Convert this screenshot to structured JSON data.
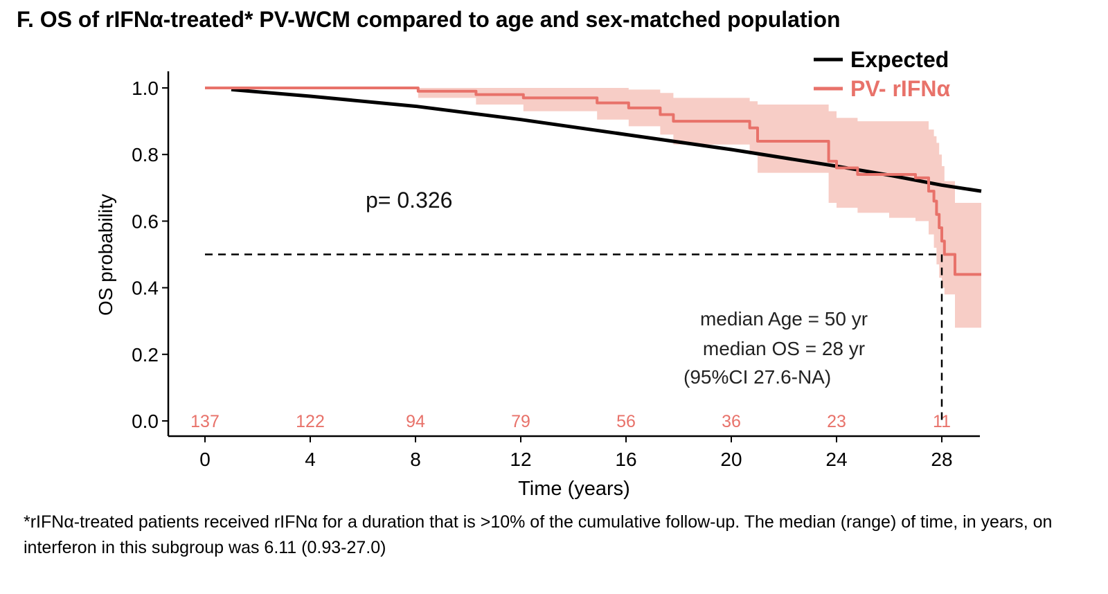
{
  "chart_data": {
    "type": "line",
    "title": "F. OS of rIFNα-treated* PV-WCM compared to age and sex-matched population",
    "xlabel": "Time (years)",
    "ylabel": "OS probability",
    "xlim": [
      -0.8,
      29.6
    ],
    "ylim": [
      -0.05,
      1.05
    ],
    "x_ticks": [
      0,
      4,
      8,
      12,
      16,
      20,
      24,
      28
    ],
    "x_tick_labels": [
      "0",
      "4",
      "8",
      "12",
      "16",
      "20",
      "24",
      "28"
    ],
    "y_ticks": [
      0,
      0.2,
      0.4,
      0.6,
      0.8,
      1.0
    ],
    "y_tick_labels": [
      "0.0",
      "0.2",
      "0.4",
      "0.6",
      "0.8",
      "1.0"
    ],
    "grid": false,
    "legend_position": "top-right",
    "series": [
      {
        "name": "Expected",
        "color": "#000000",
        "style": "smooth",
        "x": [
          1,
          4,
          8,
          12,
          16,
          20,
          22,
          24,
          26,
          28,
          29.5
        ],
        "y": [
          0.995,
          0.975,
          0.945,
          0.905,
          0.86,
          0.815,
          0.79,
          0.765,
          0.738,
          0.708,
          0.69
        ]
      },
      {
        "name": "PV- rIFNα",
        "color": "#e8726a",
        "style": "step",
        "x": [
          0,
          8.1,
          10.3,
          12.1,
          14.9,
          16.1,
          17.3,
          17.8,
          20.7,
          21.0,
          23.7,
          24.0,
          24.8,
          26.0,
          27.0,
          27.5,
          27.7,
          27.8,
          27.9,
          28.0,
          28.1,
          28.5,
          29.5
        ],
        "y": [
          1.0,
          0.99,
          0.98,
          0.97,
          0.955,
          0.94,
          0.92,
          0.9,
          0.88,
          0.84,
          0.78,
          0.76,
          0.74,
          0.74,
          0.73,
          0.69,
          0.66,
          0.62,
          0.58,
          0.54,
          0.5,
          0.44,
          0.44
        ]
      }
    ],
    "confidence_band": {
      "series": "PV- rIFNα",
      "color": "#f4b8ae",
      "opacity": 0.7,
      "x": [
        0,
        8.1,
        10.3,
        12.1,
        14.9,
        16.1,
        17.3,
        17.8,
        20.7,
        21.0,
        23.7,
        24.0,
        24.8,
        26.0,
        27.0,
        27.5,
        27.7,
        27.8,
        27.9,
        28.0,
        28.1,
        28.5,
        29.5
      ],
      "lower": [
        1.0,
        0.97,
        0.95,
        0.93,
        0.905,
        0.885,
        0.86,
        0.83,
        0.8,
        0.745,
        0.655,
        0.64,
        0.625,
        0.61,
        0.6,
        0.56,
        0.52,
        0.47,
        0.43,
        0.4,
        0.38,
        0.28,
        0.28
      ],
      "upper": [
        1.0,
        1.0,
        1.0,
        1.0,
        1.0,
        0.995,
        0.985,
        0.97,
        0.96,
        0.95,
        0.93,
        0.91,
        0.9,
        0.9,
        0.9,
        0.875,
        0.855,
        0.835,
        0.8,
        0.765,
        0.72,
        0.655,
        0.655
      ]
    },
    "median_line": {
      "y": 0.5,
      "x": 28
    },
    "risk_table": {
      "color": "#e8726a",
      "x": [
        0,
        4,
        8,
        12,
        16,
        20,
        24,
        28
      ],
      "labels": [
        "137",
        "122",
        "94",
        "79",
        "56",
        "36",
        "23",
        "11"
      ]
    },
    "annotations": {
      "p_value": "p= 0.326",
      "median_age": "median Age =  50 yr",
      "median_os": "median OS =  28 yr",
      "ci": "(95%CI 27.6-NA)"
    }
  },
  "footnote": "*rIFNα-treated patients received rIFNα for a duration that is >10% of the cumulative follow-up. The median (range) of time, in years, on interferon in this subgroup was 6.11 (0.93-27.0)"
}
